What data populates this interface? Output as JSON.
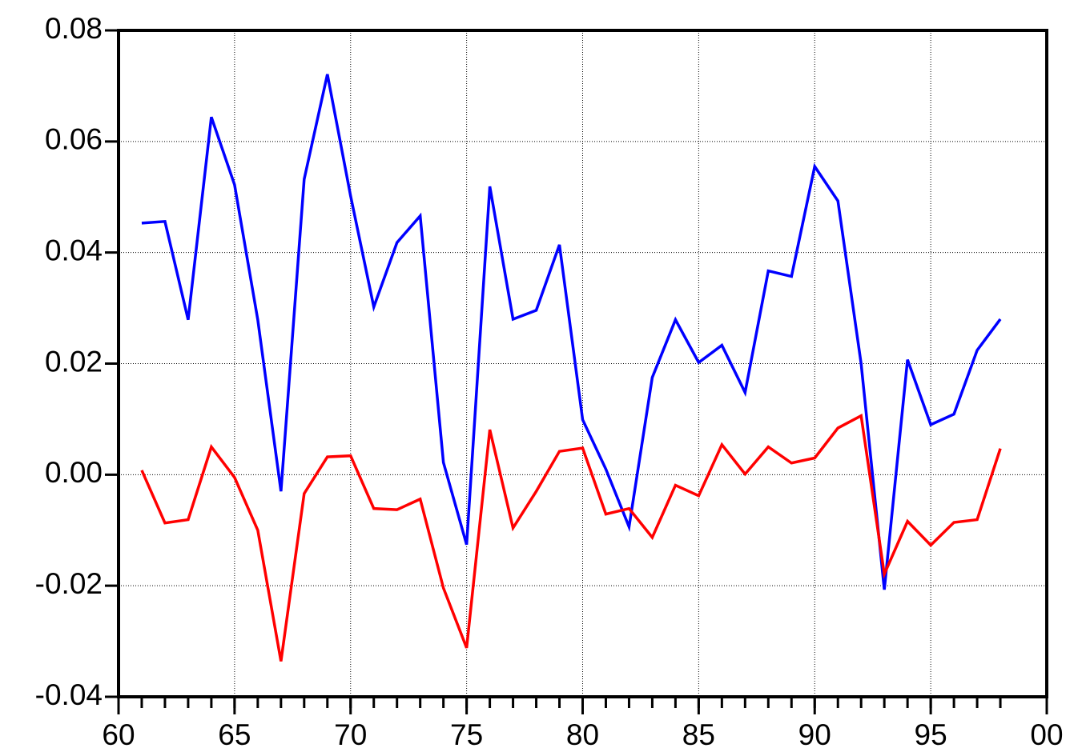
{
  "chart_data": {
    "type": "line",
    "x": [
      61,
      62,
      63,
      64,
      65,
      66,
      67,
      68,
      69,
      70,
      71,
      72,
      73,
      74,
      75,
      76,
      77,
      78,
      79,
      80,
      81,
      82,
      83,
      84,
      85,
      86,
      87,
      88,
      89,
      90,
      91,
      92,
      93,
      94,
      95,
      96,
      97,
      98
    ],
    "series": [
      {
        "color": "#0000ff",
        "values": [
          0.0453,
          0.0456,
          0.0279,
          0.0644,
          0.0522,
          0.0279,
          -0.003,
          0.0532,
          0.0721,
          0.0502,
          0.0302,
          0.0418,
          0.0466,
          0.0022,
          -0.0126,
          0.0519,
          0.028,
          0.0296,
          0.0414,
          0.0099,
          0.001,
          -0.0094,
          0.0175,
          0.0279,
          0.0202,
          0.0233,
          0.0148,
          0.0367,
          0.0357,
          0.0555,
          0.0493,
          0.02,
          -0.0207,
          0.0207,
          0.009,
          0.0109,
          0.0224,
          0.028
        ]
      },
      {
        "color": "#ff0000",
        "values": [
          0.0008,
          -0.0087,
          -0.0081,
          0.005,
          -0.0005,
          -0.01,
          -0.0336,
          -0.0034,
          0.0032,
          0.0034,
          -0.0061,
          -0.0063,
          -0.0044,
          -0.0204,
          -0.0312,
          0.0081,
          -0.0096,
          -0.003,
          0.0042,
          0.0048,
          -0.0071,
          -0.0061,
          -0.0113,
          -0.0019,
          -0.0038,
          0.0054,
          0.0001,
          0.005,
          0.0021,
          0.003,
          0.0084,
          0.0106,
          -0.0179,
          -0.0084,
          -0.0127,
          -0.0086,
          -0.0081,
          0.0047
        ]
      }
    ],
    "xlim": [
      60,
      100
    ],
    "xticks": [
      60,
      65,
      70,
      75,
      80,
      85,
      90,
      95,
      {
        "value": 100,
        "label": "00"
      }
    ],
    "ylim": [
      -0.04,
      0.08
    ],
    "yticks": [
      -0.04,
      -0.02,
      {
        "value": 0,
        "label": "0.00"
      },
      0.02,
      0.04,
      0.06,
      0.08
    ],
    "grid": true
  }
}
